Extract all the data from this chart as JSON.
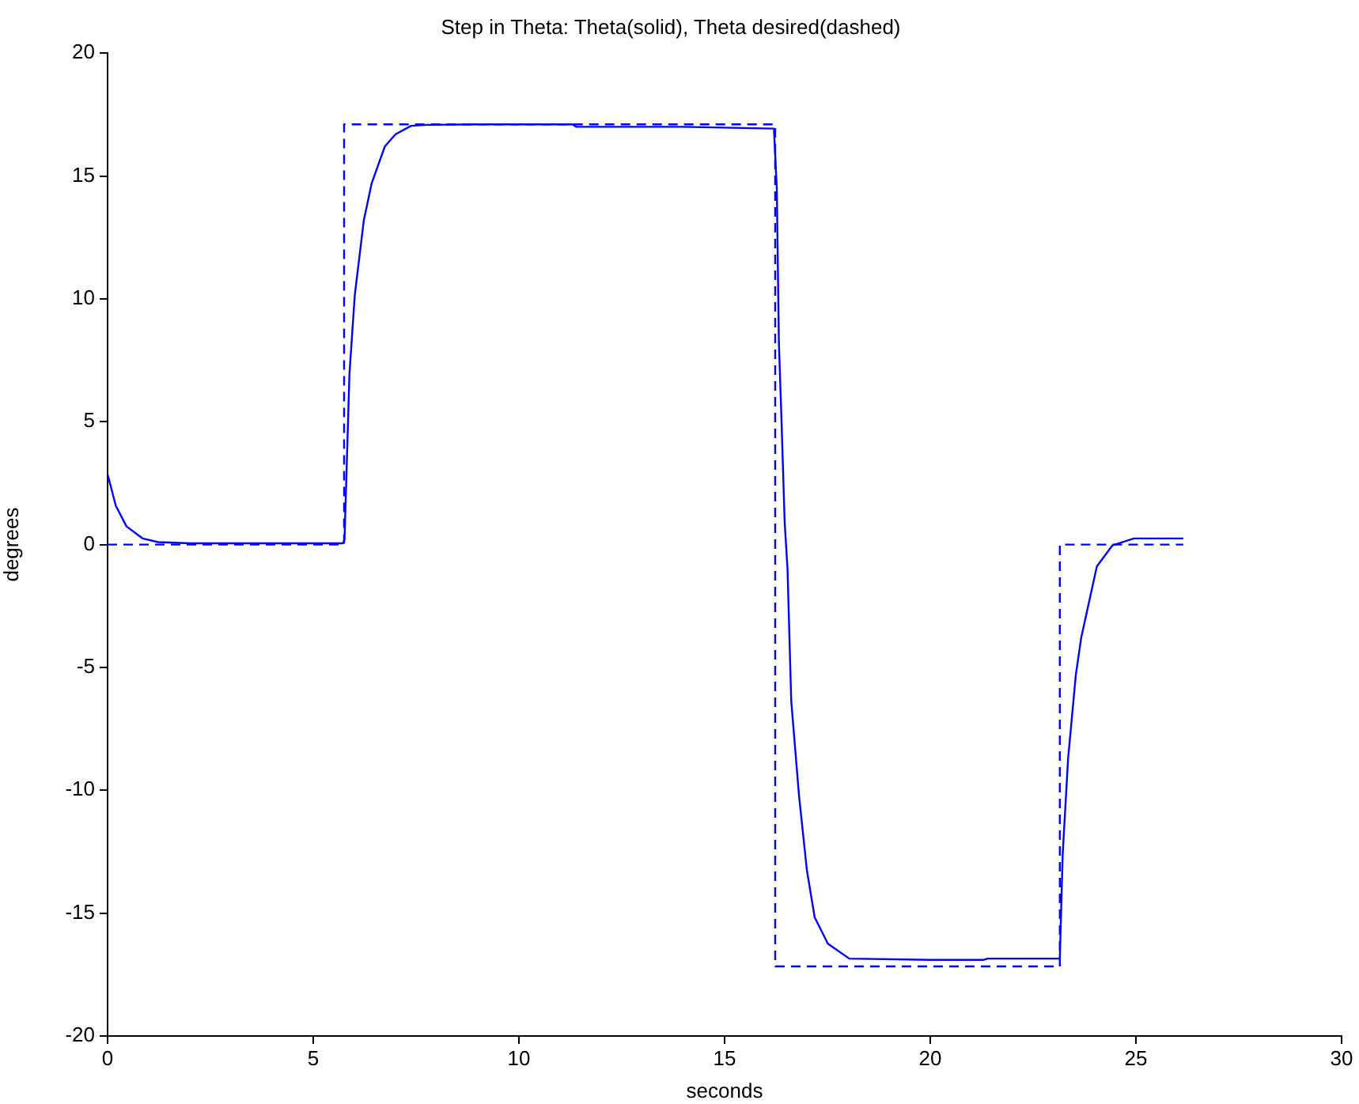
{
  "chart_data": {
    "type": "line",
    "title": "Step in Theta: Theta(solid), Theta desired(dashed)",
    "xlabel": "seconds",
    "ylabel": "degrees",
    "xlim": [
      0,
      30
    ],
    "ylim": [
      -20,
      20
    ],
    "xticks": [
      0,
      5,
      10,
      15,
      20,
      25,
      30
    ],
    "yticks": [
      -20,
      -15,
      -10,
      -5,
      0,
      5,
      10,
      15,
      20
    ],
    "grid": false,
    "legend": false,
    "marker": "none",
    "series": [
      {
        "color": "#0000ff",
        "line_style": "solid",
        "x": [
          0,
          0.2,
          0.46,
          0.85,
          1.23,
          2,
          4,
          5.72,
          5.76,
          5.88,
          6.01,
          6.23,
          6.42,
          6.74,
          7.0,
          7.38,
          7.77,
          9,
          11.3,
          11.4,
          14,
          16.2,
          16.27,
          16.32,
          16.38,
          16.46,
          16.53,
          16.62,
          16.81,
          17.0,
          17.19,
          17.51,
          18.03,
          20,
          21.3,
          21.4,
          23.15,
          23.22,
          23.35,
          23.54,
          23.67,
          24.05,
          24.43,
          24.95,
          26.15
        ],
        "values": [
          2.87,
          1.58,
          0.74,
          0.25,
          0.1,
          0.05,
          0.05,
          0.05,
          0.2,
          6.94,
          10.16,
          13.2,
          14.7,
          16.2,
          16.7,
          17.04,
          17.08,
          17.1,
          17.1,
          17.0,
          17.0,
          16.93,
          14.46,
          8.23,
          5.25,
          0.93,
          -1.0,
          -6.36,
          -10.23,
          -13.24,
          -15.17,
          -16.24,
          -16.85,
          -16.9,
          -16.9,
          -16.85,
          -16.85,
          -12.59,
          -8.73,
          -5.29,
          -3.79,
          -0.89,
          -0.03,
          0.25,
          0.25
        ]
      },
      {
        "color": "#0000ff",
        "line_style": "dashed",
        "x": [
          0,
          5.75,
          5.75,
          16.23,
          16.23,
          23.15,
          23.15,
          26.15
        ],
        "values": [
          0,
          0,
          17.1,
          17.1,
          -17.17,
          -17.17,
          0,
          0
        ]
      }
    ]
  }
}
